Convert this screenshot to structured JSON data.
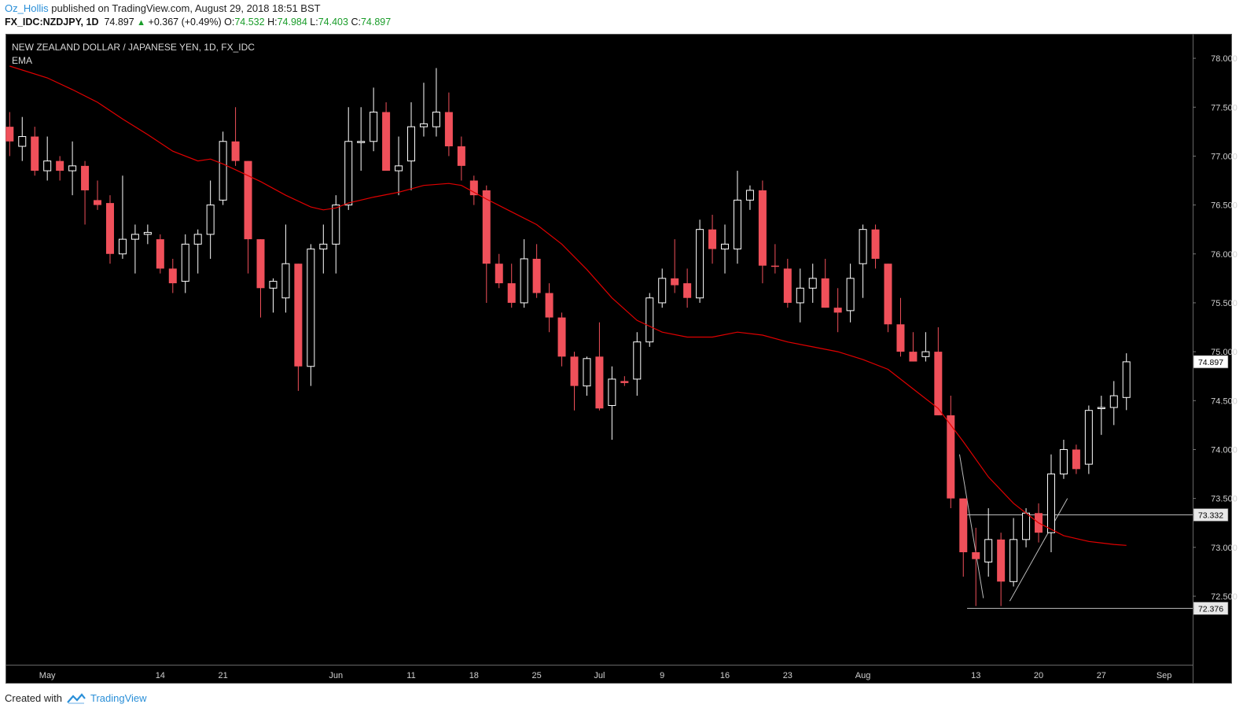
{
  "header": {
    "author": "Oz_Hollis",
    "published_text": "published on TradingView.com, August 29, 2018 18:51 BST",
    "symbol": "FX_IDC:NZDJPY, 1D",
    "last": "74.897",
    "change": "+0.367 (+0.49%)",
    "o_label": "O:",
    "o_value": "74.532",
    "h_label": "H:",
    "h_value": "74.984",
    "l_label": "L:",
    "l_value": "74.403",
    "c_label": "C:",
    "c_value": "74.897"
  },
  "footer": {
    "created_with": "Created with",
    "brand": "TradingView"
  },
  "colors": {
    "background": "#000000",
    "bull_candle_fill": "#000000",
    "bull_candle_border": "#ffffff",
    "bear_candle": "#f0505a",
    "ema_line": "#e00000",
    "axis_text": "#d0d0d0"
  },
  "chart_data": {
    "type": "candlestick",
    "title": "NEW ZEALAND DOLLAR / JAPANESE YEN, 1D, FX_IDC",
    "indicator_label": "EMA",
    "ylim": [
      71.8,
      78.25
    ],
    "y_ticks": [
      "78.000",
      "77.500",
      "77.000",
      "76.500",
      "76.000",
      "75.500",
      "75.000",
      "74.500",
      "74.000",
      "73.500",
      "73.000",
      "72.500"
    ],
    "x_labels": [
      {
        "label": "May",
        "index": 3
      },
      {
        "label": "14",
        "index": 12
      },
      {
        "label": "21",
        "index": 17
      },
      {
        "label": "Jun",
        "index": 26
      },
      {
        "label": "11",
        "index": 32
      },
      {
        "label": "18",
        "index": 37
      },
      {
        "label": "25",
        "index": 42
      },
      {
        "label": "Jul",
        "index": 47
      },
      {
        "label": "9",
        "index": 52
      },
      {
        "label": "16",
        "index": 57
      },
      {
        "label": "23",
        "index": 62
      },
      {
        "label": "Aug",
        "index": 68
      },
      {
        "label": "13",
        "index": 77
      },
      {
        "label": "20",
        "index": 82
      },
      {
        "label": "27",
        "index": 87
      },
      {
        "label": "Sep",
        "index": 92
      }
    ],
    "price_labels": [
      {
        "value": "74.897",
        "type": "last"
      },
      {
        "value": "73.332",
        "type": "line"
      },
      {
        "value": "72.376",
        "type": "line"
      }
    ],
    "horizontal_lines": [
      {
        "value": 73.332,
        "from_index": 76.3
      },
      {
        "value": 72.376,
        "from_index": 76.3
      }
    ],
    "trend_lines": [
      {
        "from": [
          75.7,
          73.95
        ],
        "to": [
          77.6,
          72.48
        ]
      },
      {
        "from": [
          79.7,
          72.45
        ],
        "to": [
          84.3,
          73.5
        ]
      }
    ],
    "candles": [
      [
        77.3,
        77.45,
        77.0,
        77.15
      ],
      [
        77.1,
        77.4,
        76.95,
        77.2
      ],
      [
        77.2,
        77.3,
        76.8,
        76.85
      ],
      [
        76.85,
        77.2,
        76.75,
        76.95
      ],
      [
        76.95,
        77.0,
        76.75,
        76.85
      ],
      [
        76.85,
        77.15,
        76.6,
        76.9
      ],
      [
        76.9,
        76.95,
        76.3,
        76.65
      ],
      [
        76.55,
        76.75,
        76.45,
        76.5
      ],
      [
        76.52,
        76.6,
        75.9,
        76.0
      ],
      [
        76.0,
        76.8,
        75.95,
        76.15
      ],
      [
        76.15,
        76.3,
        75.8,
        76.2
      ],
      [
        76.2,
        76.3,
        76.1,
        76.22
      ],
      [
        76.15,
        76.2,
        75.8,
        75.85
      ],
      [
        75.85,
        75.95,
        75.6,
        75.7
      ],
      [
        75.72,
        76.2,
        75.6,
        76.1
      ],
      [
        76.1,
        76.25,
        75.8,
        76.2
      ],
      [
        76.2,
        76.75,
        75.95,
        76.5
      ],
      [
        76.55,
        77.25,
        76.5,
        77.15
      ],
      [
        77.15,
        77.5,
        76.9,
        76.95
      ],
      [
        76.95,
        76.95,
        75.8,
        76.15
      ],
      [
        76.15,
        76.15,
        75.35,
        75.65
      ],
      [
        75.65,
        75.75,
        75.4,
        75.72
      ],
      [
        75.55,
        76.3,
        75.4,
        75.9
      ],
      [
        75.9,
        75.9,
        74.6,
        74.85
      ],
      [
        74.85,
        76.1,
        74.65,
        76.05
      ],
      [
        76.05,
        76.3,
        75.8,
        76.1
      ],
      [
        76.1,
        76.6,
        75.8,
        76.5
      ],
      [
        76.5,
        77.5,
        76.45,
        77.15
      ],
      [
        77.15,
        77.5,
        76.85,
        77.15
      ],
      [
        77.15,
        77.7,
        77.05,
        77.45
      ],
      [
        77.45,
        77.55,
        76.9,
        76.85
      ],
      [
        76.85,
        77.2,
        76.6,
        76.9
      ],
      [
        76.95,
        77.55,
        76.65,
        77.3
      ],
      [
        77.3,
        77.75,
        77.2,
        77.33
      ],
      [
        77.3,
        77.9,
        77.2,
        77.45
      ],
      [
        77.45,
        77.65,
        77.0,
        77.1
      ],
      [
        77.1,
        77.2,
        76.75,
        76.9
      ],
      [
        76.75,
        76.8,
        76.5,
        76.6
      ],
      [
        76.65,
        76.7,
        75.5,
        75.9
      ],
      [
        75.9,
        76.0,
        75.65,
        75.7
      ],
      [
        75.7,
        75.9,
        75.45,
        75.5
      ],
      [
        75.5,
        76.15,
        75.45,
        75.95
      ],
      [
        75.95,
        76.1,
        75.55,
        75.6
      ],
      [
        75.6,
        75.7,
        75.2,
        75.35
      ],
      [
        75.35,
        75.4,
        74.85,
        74.95
      ],
      [
        74.95,
        75.0,
        74.4,
        74.65
      ],
      [
        74.65,
        74.95,
        74.55,
        74.93
      ],
      [
        74.95,
        75.3,
        74.4,
        74.42
      ],
      [
        74.45,
        74.85,
        74.1,
        74.72
      ],
      [
        74.7,
        74.75,
        74.65,
        74.68
      ],
      [
        74.72,
        75.2,
        74.55,
        75.1
      ],
      [
        75.1,
        75.6,
        75.05,
        75.55
      ],
      [
        75.5,
        75.85,
        75.45,
        75.75
      ],
      [
        75.75,
        76.15,
        75.6,
        75.68
      ],
      [
        75.7,
        75.85,
        75.45,
        75.55
      ],
      [
        75.55,
        76.35,
        75.5,
        76.25
      ],
      [
        76.25,
        76.4,
        75.9,
        76.05
      ],
      [
        76.05,
        76.3,
        75.8,
        76.1
      ],
      [
        76.05,
        76.85,
        75.9,
        76.55
      ],
      [
        76.55,
        76.7,
        76.45,
        76.65
      ],
      [
        76.65,
        76.75,
        75.7,
        75.88
      ],
      [
        75.88,
        76.1,
        75.8,
        75.87
      ],
      [
        75.85,
        75.95,
        75.45,
        75.5
      ],
      [
        75.5,
        75.85,
        75.3,
        75.65
      ],
      [
        75.65,
        75.9,
        75.5,
        75.75
      ],
      [
        75.75,
        75.95,
        75.45,
        75.45
      ],
      [
        75.45,
        75.65,
        75.2,
        75.4
      ],
      [
        75.42,
        75.9,
        75.3,
        75.75
      ],
      [
        75.9,
        76.3,
        75.55,
        76.25
      ],
      [
        76.25,
        76.3,
        75.85,
        75.95
      ],
      [
        75.9,
        75.9,
        75.2,
        75.28
      ],
      [
        75.28,
        75.55,
        74.95,
        75.0
      ],
      [
        75.0,
        75.2,
        74.9,
        74.9
      ],
      [
        74.95,
        75.2,
        74.9,
        75.0
      ],
      [
        75.0,
        75.25,
        74.35,
        74.35
      ],
      [
        74.35,
        74.55,
        73.4,
        73.5
      ],
      [
        73.5,
        73.5,
        72.7,
        72.95
      ],
      [
        72.95,
        73.2,
        72.4,
        72.88
      ],
      [
        72.85,
        73.4,
        72.7,
        73.08
      ],
      [
        73.08,
        73.15,
        72.4,
        72.65
      ],
      [
        72.65,
        73.3,
        72.6,
        73.08
      ],
      [
        73.08,
        73.4,
        73.0,
        73.35
      ],
      [
        73.35,
        73.45,
        73.05,
        73.15
      ],
      [
        73.15,
        73.95,
        72.95,
        73.75
      ],
      [
        73.75,
        74.1,
        73.7,
        74.0
      ],
      [
        74.0,
        74.05,
        73.75,
        73.8
      ],
      [
        73.85,
        74.45,
        73.75,
        74.4
      ],
      [
        74.43,
        74.55,
        74.15,
        74.43
      ],
      [
        74.43,
        74.7,
        74.25,
        74.55
      ],
      [
        74.532,
        74.984,
        74.403,
        74.897
      ]
    ],
    "ema": [
      [
        0,
        77.92
      ],
      [
        3,
        77.8
      ],
      [
        5,
        77.68
      ],
      [
        7,
        77.55
      ],
      [
        9,
        77.38
      ],
      [
        11,
        77.22
      ],
      [
        13,
        77.05
      ],
      [
        15,
        76.95
      ],
      [
        16,
        76.97
      ],
      [
        17,
        76.92
      ],
      [
        18,
        76.86
      ],
      [
        20,
        76.74
      ],
      [
        22,
        76.6
      ],
      [
        24,
        76.48
      ],
      [
        25,
        76.45
      ],
      [
        26,
        76.47
      ],
      [
        27,
        76.52
      ],
      [
        29,
        76.58
      ],
      [
        31,
        76.63
      ],
      [
        33,
        76.7
      ],
      [
        35,
        76.72
      ],
      [
        36,
        76.7
      ],
      [
        38,
        76.56
      ],
      [
        40,
        76.43
      ],
      [
        42,
        76.3
      ],
      [
        44,
        76.1
      ],
      [
        46,
        75.84
      ],
      [
        48,
        75.55
      ],
      [
        50,
        75.32
      ],
      [
        52,
        75.2
      ],
      [
        54,
        75.15
      ],
      [
        56,
        75.15
      ],
      [
        58,
        75.2
      ],
      [
        60,
        75.17
      ],
      [
        62,
        75.1
      ],
      [
        64,
        75.05
      ],
      [
        66,
        75.0
      ],
      [
        68,
        74.92
      ],
      [
        70,
        74.82
      ],
      [
        72,
        74.62
      ],
      [
        74,
        74.42
      ],
      [
        76,
        74.08
      ],
      [
        78,
        73.72
      ],
      [
        80,
        73.45
      ],
      [
        82,
        73.25
      ],
      [
        84,
        73.12
      ],
      [
        86,
        73.06
      ],
      [
        88,
        73.03
      ],
      [
        89,
        73.02
      ]
    ]
  }
}
